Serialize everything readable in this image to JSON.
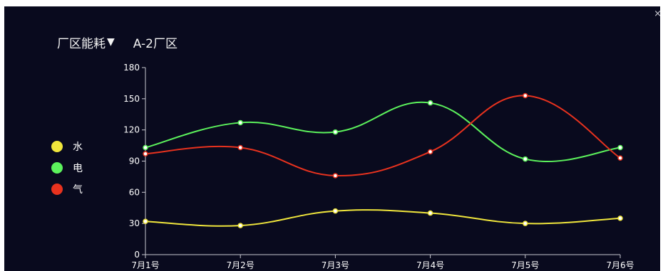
{
  "header": {
    "selector_label": "厂区能耗",
    "selector_caret": "▼",
    "plant_name": "A-2厂区",
    "close_glyph": "×"
  },
  "colors": {
    "background": "#090a1e",
    "axis": "#c8c8d0"
  },
  "chart_data": {
    "type": "line",
    "smooth": true,
    "categories": [
      "7月1号",
      "7月2号",
      "7月3号",
      "7月4号",
      "7月5号",
      "7月6号"
    ],
    "ylim": [
      0,
      180
    ],
    "yticks": [
      0,
      30,
      60,
      90,
      120,
      150,
      180
    ],
    "grid": false,
    "legend_position": "left",
    "series": [
      {
        "name": "水",
        "color": "#f0e63c",
        "values": [
          32,
          28,
          42,
          40,
          30,
          35
        ]
      },
      {
        "name": "电",
        "color": "#5cf25c",
        "values": [
          103,
          127,
          118,
          146,
          92,
          103
        ]
      },
      {
        "name": "气",
        "color": "#e8321e",
        "values": [
          97,
          103,
          76,
          99,
          153,
          93
        ]
      }
    ]
  }
}
